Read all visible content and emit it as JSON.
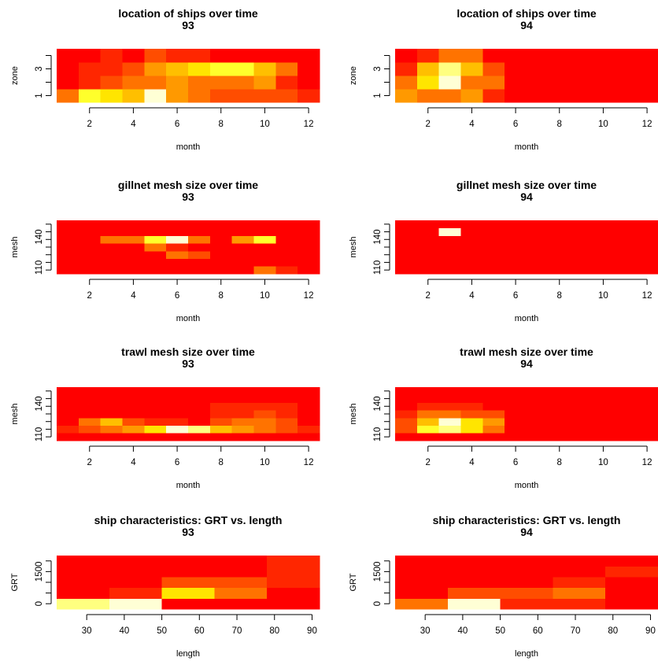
{
  "palette": [
    "#FF0000",
    "#FF2600",
    "#FF4D00",
    "#FF7300",
    "#FF9900",
    "#FFBF00",
    "#FFE500",
    "#FFFF2B",
    "#FFFF80",
    "#FFFFD5"
  ],
  "chart_data": [
    {
      "type": "heatmap",
      "title": "location of ships over time",
      "subtitle": "93",
      "xlabel": "month",
      "ylabel": "zone",
      "x": [
        1,
        2,
        3,
        4,
        5,
        6,
        7,
        8,
        9,
        10,
        11,
        12
      ],
      "y": [
        1,
        2,
        3,
        4
      ],
      "x_ticks": [
        "2",
        "4",
        "6",
        "8",
        "10",
        "12"
      ],
      "y_ticks": [
        "1",
        "3"
      ],
      "xlim": [
        0.5,
        12.5
      ],
      "ylim": [
        0.5,
        4.5
      ],
      "levels": [
        [
          3,
          7,
          6,
          5,
          9,
          4,
          3,
          2,
          2,
          2,
          2,
          1
        ],
        [
          0,
          1,
          2,
          3,
          3,
          4,
          3,
          3,
          3,
          4,
          1,
          0
        ],
        [
          0,
          1,
          1,
          2,
          4,
          5,
          6,
          7,
          7,
          5,
          3,
          0
        ],
        [
          0,
          0,
          1,
          0,
          2,
          1,
          1,
          0,
          0,
          0,
          0,
          0
        ]
      ]
    },
    {
      "type": "heatmap",
      "title": "location of ships over time",
      "subtitle": "94",
      "xlabel": "month",
      "ylabel": "zone",
      "x": [
        1,
        2,
        3,
        4,
        5,
        6,
        7,
        8,
        9,
        10,
        11,
        12
      ],
      "y": [
        1,
        2,
        3,
        4
      ],
      "x_ticks": [
        "2",
        "4",
        "6",
        "8",
        "10",
        "12"
      ],
      "y_ticks": [
        "1",
        "3"
      ],
      "xlim": [
        0.5,
        12.5
      ],
      "ylim": [
        0.5,
        4.5
      ],
      "levels": [
        [
          4,
          3,
          3,
          4,
          1,
          0,
          0,
          0,
          0,
          0,
          0,
          0
        ],
        [
          3,
          6,
          9,
          3,
          3,
          0,
          0,
          0,
          0,
          0,
          0,
          0
        ],
        [
          1,
          5,
          8,
          5,
          2,
          0,
          0,
          0,
          0,
          0,
          0,
          0
        ],
        [
          0,
          1,
          3,
          3,
          0,
          0,
          0,
          0,
          0,
          0,
          0,
          0
        ]
      ]
    },
    {
      "type": "heatmap",
      "title": "gillnet mesh size over time",
      "subtitle": "93",
      "xlabel": "month",
      "ylabel": "mesh",
      "x": [
        1,
        2,
        3,
        4,
        5,
        6,
        7,
        8,
        9,
        10,
        11,
        12
      ],
      "y": [
        107.5,
        115,
        122.5,
        130,
        137.5,
        145,
        152.5
      ],
      "x_ticks": [
        "2",
        "4",
        "6",
        "8",
        "10",
        "12"
      ],
      "y_ticks": [
        "110",
        "140"
      ],
      "xlim": [
        0.5,
        12.5
      ],
      "ylim": [
        103.75,
        156.25
      ],
      "levels": [
        [
          0,
          0,
          0,
          0,
          0,
          0,
          0,
          0,
          0,
          3,
          1,
          0
        ],
        [
          0,
          0,
          0,
          0,
          0,
          0,
          0,
          0,
          0,
          0,
          0,
          0
        ],
        [
          0,
          0,
          0,
          0,
          0,
          3,
          2,
          0,
          0,
          0,
          0,
          0
        ],
        [
          0,
          0,
          0,
          0,
          3,
          1,
          0,
          0,
          0,
          0,
          0,
          0
        ],
        [
          0,
          0,
          3,
          3,
          7,
          9,
          3,
          0,
          4,
          7,
          0,
          0
        ],
        [
          0,
          0,
          0,
          0,
          0,
          0,
          0,
          0,
          0,
          0,
          0,
          0
        ],
        [
          0,
          0,
          0,
          0,
          0,
          0,
          0,
          0,
          0,
          0,
          0,
          0
        ]
      ]
    },
    {
      "type": "heatmap",
      "title": "gillnet mesh size over time",
      "subtitle": "94",
      "xlabel": "month",
      "ylabel": "mesh",
      "x": [
        1,
        2,
        3,
        4,
        5,
        6,
        7,
        8,
        9,
        10,
        11,
        12
      ],
      "y": [
        107.5,
        115,
        122.5,
        130,
        137.5,
        145,
        152.5
      ],
      "x_ticks": [
        "2",
        "4",
        "6",
        "8",
        "10",
        "12"
      ],
      "y_ticks": [
        "110",
        "140"
      ],
      "xlim": [
        0.5,
        12.5
      ],
      "ylim": [
        103.75,
        156.25
      ],
      "levels": [
        [
          0,
          0,
          0,
          0,
          0,
          0,
          0,
          0,
          0,
          0,
          0,
          0
        ],
        [
          0,
          0,
          0,
          0,
          0,
          0,
          0,
          0,
          0,
          0,
          0,
          0
        ],
        [
          0,
          0,
          0,
          0,
          0,
          0,
          0,
          0,
          0,
          0,
          0,
          0
        ],
        [
          0,
          0,
          0,
          0,
          0,
          0,
          0,
          0,
          0,
          0,
          0,
          0
        ],
        [
          0,
          0,
          0,
          0,
          0,
          0,
          0,
          0,
          0,
          0,
          0,
          0
        ],
        [
          0,
          0,
          9,
          0,
          0,
          0,
          0,
          0,
          0,
          0,
          0,
          0
        ],
        [
          0,
          0,
          0,
          0,
          0,
          0,
          0,
          0,
          0,
          0,
          0,
          0
        ]
      ]
    },
    {
      "type": "heatmap",
      "title": "trawl mesh size over time",
      "subtitle": "93",
      "xlabel": "month",
      "ylabel": "mesh",
      "x": [
        1,
        2,
        3,
        4,
        5,
        6,
        7,
        8,
        9,
        10,
        11,
        12
      ],
      "y": [
        107.5,
        115,
        122.5,
        130,
        137.5,
        145,
        152.5
      ],
      "x_ticks": [
        "2",
        "4",
        "6",
        "8",
        "10",
        "12"
      ],
      "y_ticks": [
        "110",
        "140"
      ],
      "xlim": [
        0.5,
        12.5
      ],
      "ylim": [
        103.75,
        156.25
      ],
      "levels": [
        [
          0,
          0,
          0,
          0,
          0,
          0,
          0,
          0,
          0,
          0,
          0,
          0
        ],
        [
          1,
          2,
          3,
          4,
          6,
          9,
          8,
          5,
          4,
          3,
          2,
          1
        ],
        [
          0,
          3,
          5,
          2,
          1,
          1,
          0,
          2,
          3,
          3,
          2,
          0
        ],
        [
          0,
          0,
          0,
          0,
          0,
          0,
          0,
          1,
          1,
          2,
          1,
          0
        ],
        [
          0,
          0,
          0,
          0,
          0,
          0,
          0,
          1,
          1,
          1,
          1,
          0
        ],
        [
          0,
          0,
          0,
          0,
          0,
          0,
          0,
          0,
          0,
          0,
          0,
          0
        ],
        [
          0,
          0,
          0,
          0,
          0,
          0,
          0,
          0,
          0,
          0,
          0,
          0
        ]
      ]
    },
    {
      "type": "heatmap",
      "title": "trawl mesh size over time",
      "subtitle": "94",
      "xlabel": "month",
      "ylabel": "mesh",
      "x": [
        1,
        2,
        3,
        4,
        5,
        6,
        7,
        8,
        9,
        10,
        11,
        12
      ],
      "y": [
        107.5,
        115,
        122.5,
        130,
        137.5,
        145,
        152.5
      ],
      "x_ticks": [
        "2",
        "4",
        "6",
        "8",
        "10",
        "12"
      ],
      "y_ticks": [
        "110",
        "140"
      ],
      "xlim": [
        0.5,
        12.5
      ],
      "ylim": [
        103.75,
        156.25
      ],
      "levels": [
        [
          0,
          0,
          0,
          0,
          0,
          0,
          0,
          0,
          0,
          0,
          0,
          0
        ],
        [
          2,
          7,
          8,
          6,
          3,
          0,
          0,
          0,
          0,
          0,
          0,
          0
        ],
        [
          2,
          5,
          9,
          6,
          4,
          0,
          0,
          0,
          0,
          0,
          0,
          0
        ],
        [
          1,
          3,
          3,
          2,
          2,
          0,
          0,
          0,
          0,
          0,
          0,
          0
        ],
        [
          0,
          1,
          1,
          1,
          0,
          0,
          0,
          0,
          0,
          0,
          0,
          0
        ],
        [
          0,
          0,
          0,
          0,
          0,
          0,
          0,
          0,
          0,
          0,
          0,
          0
        ],
        [
          0,
          0,
          0,
          0,
          0,
          0,
          0,
          0,
          0,
          0,
          0,
          0
        ]
      ]
    },
    {
      "type": "heatmap",
      "title": "ship characteristics: GRT vs. length",
      "subtitle": "93",
      "xlabel": "length",
      "ylabel": "GRT",
      "x": [
        29,
        43,
        57,
        71,
        85
      ],
      "y": [
        0,
        500,
        1000,
        1500,
        2000
      ],
      "x_ticks": [
        "30",
        "40",
        "50",
        "60",
        "70",
        "80",
        "90"
      ],
      "y_ticks": [
        "0",
        "1500"
      ],
      "xlim": [
        22,
        92
      ],
      "ylim": [
        -250,
        2250
      ],
      "levels": [
        [
          8,
          9,
          0,
          0,
          0
        ],
        [
          0,
          1,
          6,
          3,
          0
        ],
        [
          0,
          0,
          2,
          2,
          1
        ],
        [
          0,
          0,
          0,
          0,
          1
        ],
        [
          0,
          0,
          0,
          0,
          1
        ]
      ]
    },
    {
      "type": "heatmap",
      "title": "ship characteristics: GRT vs. length",
      "subtitle": "94",
      "xlabel": "length",
      "ylabel": "GRT",
      "x": [
        29,
        43,
        57,
        71,
        85
      ],
      "y": [
        0,
        500,
        1000,
        1500,
        2000
      ],
      "x_ticks": [
        "30",
        "40",
        "50",
        "60",
        "70",
        "80",
        "90"
      ],
      "y_ticks": [
        "0",
        "1500"
      ],
      "xlim": [
        22,
        92
      ],
      "ylim": [
        -250,
        2250
      ],
      "levels": [
        [
          3,
          9,
          1,
          1,
          0
        ],
        [
          0,
          2,
          2,
          3,
          0
        ],
        [
          0,
          0,
          0,
          1,
          0
        ],
        [
          0,
          0,
          0,
          0,
          1
        ],
        [
          0,
          0,
          0,
          0,
          0
        ]
      ]
    }
  ]
}
